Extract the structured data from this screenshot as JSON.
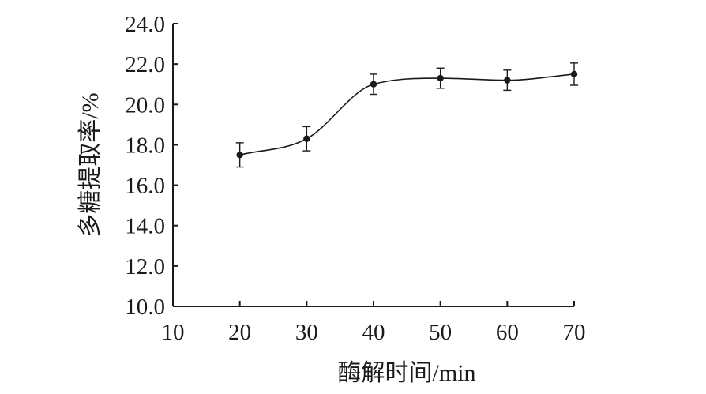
{
  "chart_data": {
    "type": "line",
    "title": "",
    "xlabel": "酶解时间/min",
    "ylabel": "多糖提取率/%",
    "xlim": [
      10,
      70
    ],
    "ylim": [
      10.0,
      24.0
    ],
    "x_ticks": [
      "10",
      "20",
      "30",
      "40",
      "50",
      "60",
      "70"
    ],
    "y_ticks": [
      "10.0",
      "12.0",
      "14.0",
      "16.0",
      "18.0",
      "20.0",
      "22.0",
      "24.0"
    ],
    "grid": false,
    "legend": "none",
    "smooth": true,
    "series": [
      {
        "x": [
          20,
          30,
          40,
          50,
          60,
          70
        ],
        "y": [
          17.5,
          18.3,
          21.0,
          21.3,
          21.2,
          21.5
        ],
        "error": [
          0.6,
          0.6,
          0.5,
          0.5,
          0.5,
          0.55
        ]
      }
    ],
    "colors": {
      "line": "#1a1a1a",
      "marker": "#1a1a1a",
      "axis": "#1a1a1a"
    }
  }
}
